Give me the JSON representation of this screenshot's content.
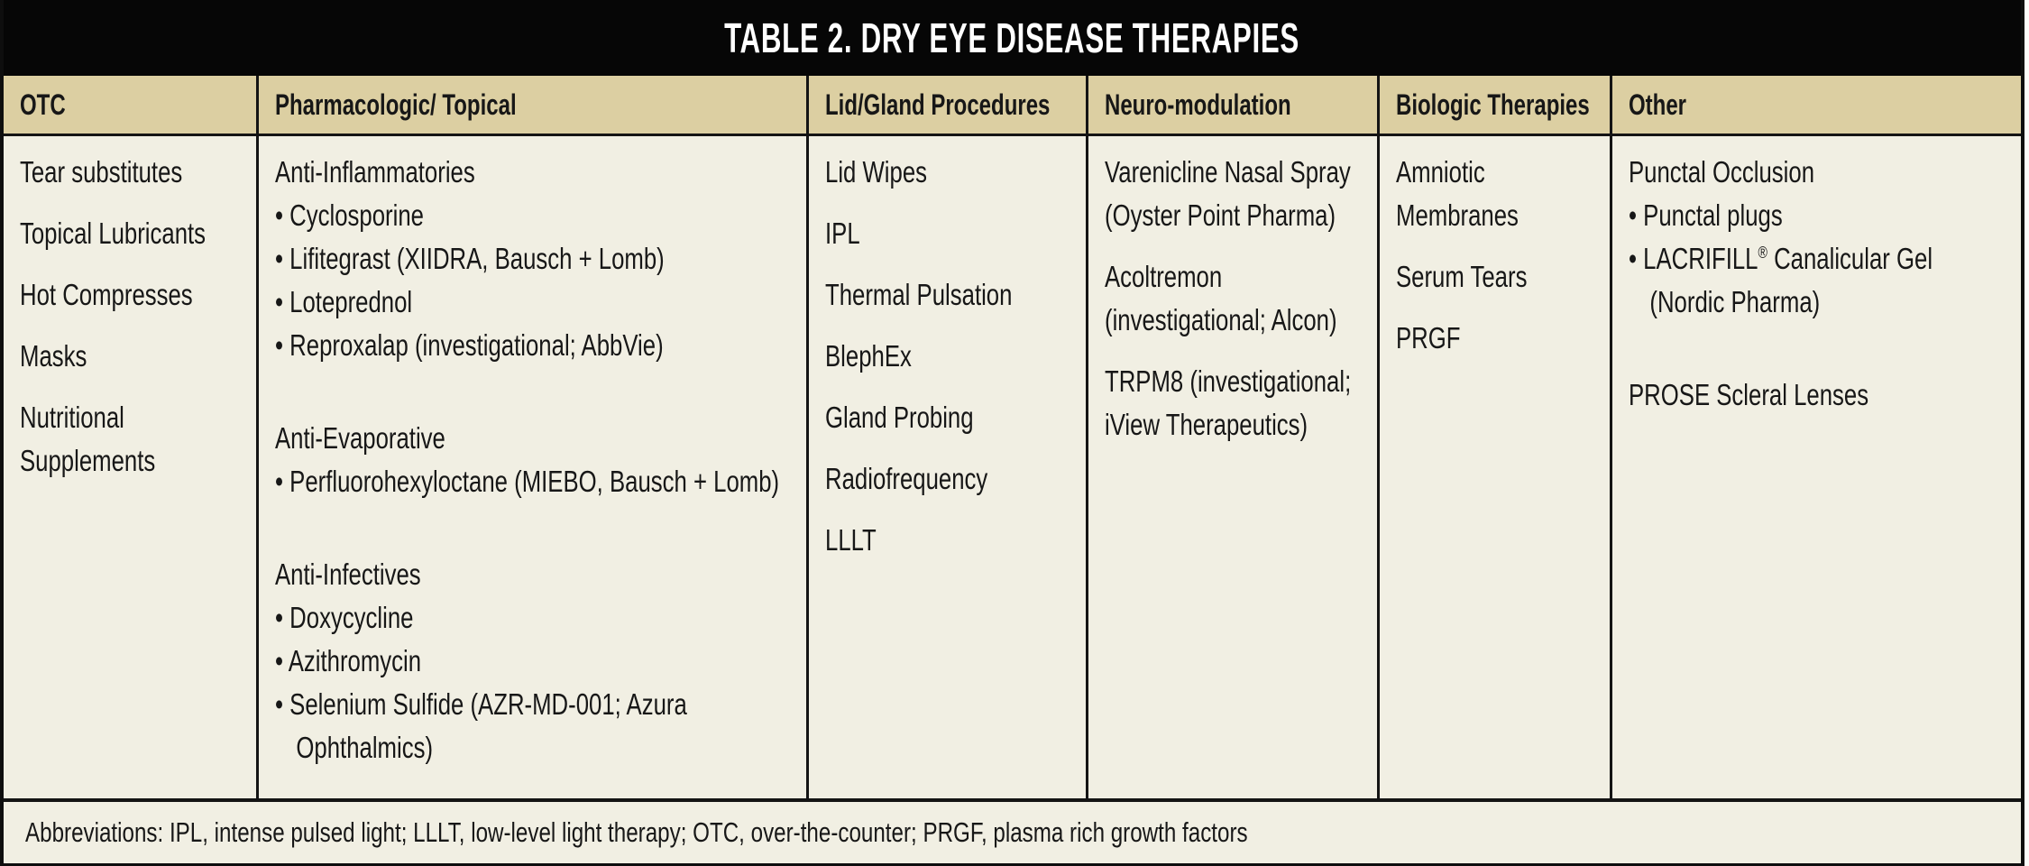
{
  "title": "TABLE 2. DRY EYE DISEASE THERAPIES",
  "footer": "Abbreviations: IPL, intense pulsed light; LLLT, low-level light therapy; OTC, over-the-counter; PRGF, plasma rich growth factors",
  "colors": {
    "title_bg": "#060606",
    "title_text": "#ffffff",
    "header_bg": "#dccfa2",
    "body_bg": "#f1efe3",
    "border": "#141414",
    "text": "#171717"
  },
  "table": {
    "columns": [
      {
        "header": "OTC",
        "blocks": [
          {
            "lines": [
              {
                "text": "Tear substitutes"
              }
            ]
          },
          {
            "lines": [
              {
                "text": "Topical Lubricants"
              }
            ]
          },
          {
            "lines": [
              {
                "text": "Hot Compresses"
              }
            ]
          },
          {
            "lines": [
              {
                "text": "Masks"
              }
            ]
          },
          {
            "lines": [
              {
                "text": "Nutritional"
              },
              {
                "text": "Supplements"
              }
            ]
          }
        ]
      },
      {
        "header": "Pharmacologic/ Topical",
        "blocks": [
          {
            "gap": "lg",
            "lines": [
              {
                "text": "Anti-Inflammatories"
              },
              {
                "text": "Cyclosporine",
                "bullet": true
              },
              {
                "text": "Lifitegrast (XIIDRA, Bausch + Lomb)",
                "bullet": true
              },
              {
                "text": "Loteprednol",
                "bullet": true
              },
              {
                "text": "Reproxalap (investigational; AbbVie)",
                "bullet": true
              }
            ]
          },
          {
            "gap": "lg",
            "lines": [
              {
                "text": "Anti-Evaporative"
              },
              {
                "text": "Perfluorohexyloctane (MIEBO, Bausch + Lomb)",
                "bullet": true
              }
            ]
          },
          {
            "lines": [
              {
                "text": "Anti-Infectives"
              },
              {
                "text": "Doxycycline",
                "bullet": true
              },
              {
                "text": "Azithromycin",
                "bullet": true
              },
              {
                "text": "Selenium Sulfide (AZR-MD-001; Azura",
                "bullet": true
              },
              {
                "text": "Ophthalmics)",
                "indent": true
              }
            ]
          }
        ]
      },
      {
        "header": "Lid/Gland Procedures",
        "blocks": [
          {
            "lines": [
              {
                "text": "Lid Wipes"
              }
            ]
          },
          {
            "lines": [
              {
                "text": "IPL"
              }
            ]
          },
          {
            "lines": [
              {
                "text": "Thermal Pulsation"
              }
            ]
          },
          {
            "lines": [
              {
                "text": "BlephEx"
              }
            ]
          },
          {
            "lines": [
              {
                "text": "Gland Probing"
              }
            ]
          },
          {
            "lines": [
              {
                "text": "Radiofrequency"
              }
            ]
          },
          {
            "lines": [
              {
                "text": "LLLT"
              }
            ]
          }
        ]
      },
      {
        "header": "Neuro-modulation",
        "blocks": [
          {
            "lines": [
              {
                "text": "Varenicline Nasal Spray"
              },
              {
                "text": "(Oyster Point Pharma)"
              }
            ]
          },
          {
            "lines": [
              {
                "text": "Acoltremon"
              },
              {
                "text": "(investigational; Alcon)"
              }
            ]
          },
          {
            "lines": [
              {
                "text": "TRPM8 (investigational;"
              },
              {
                "text": "iView Therapeutics)"
              }
            ]
          }
        ]
      },
      {
        "header": "Biologic Therapies",
        "blocks": [
          {
            "lines": [
              {
                "text": "Amniotic"
              },
              {
                "text": "Membranes"
              }
            ]
          },
          {
            "lines": [
              {
                "text": "Serum Tears"
              }
            ]
          },
          {
            "lines": [
              {
                "text": "PRGF"
              }
            ]
          }
        ]
      },
      {
        "header": "Other",
        "blocks": [
          {
            "gap": "lg",
            "lines": [
              {
                "text": "Punctal Occlusion"
              },
              {
                "text": "Punctal plugs",
                "bullet": true
              },
              {
                "segs": [
                  "LACRIFILL",
                  {
                    "sup": "®"
                  },
                  " Canalicular Gel"
                ],
                "bullet": true
              },
              {
                "text": "(Nordic Pharma)",
                "indent": true
              }
            ]
          },
          {
            "lines": [
              {
                "text": "PROSE Scleral Lenses"
              }
            ]
          }
        ]
      }
    ]
  }
}
